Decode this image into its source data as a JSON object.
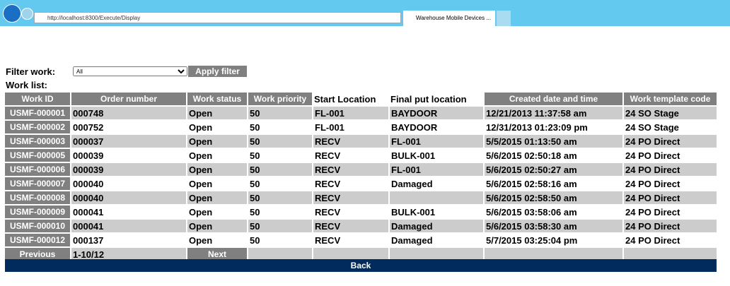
{
  "browser": {
    "url": "http://localhost:8300/Execute/Display",
    "tab_title": "Warehouse Mobile Devices ..."
  },
  "filter": {
    "label": "Filter work:",
    "selected": "All",
    "button": "Apply filter"
  },
  "work_list_label": "Work list:",
  "table": {
    "headers": [
      "Work ID",
      "Order number",
      "Work status",
      "Work priority",
      "Start Location",
      "Final put location",
      "Created date and time",
      "Work template code"
    ],
    "rows": [
      [
        "USMF-000001",
        "000748",
        "Open",
        "50",
        "FL-001",
        "BAYDOOR",
        "12/21/2013 11:37:58 am",
        "24 SO Stage"
      ],
      [
        "USMF-000002",
        "000752",
        "Open",
        "50",
        "FL-001",
        "BAYDOOR",
        "12/31/2013 01:23:09 pm",
        "24 SO Stage"
      ],
      [
        "USMF-000003",
        "000037",
        "Open",
        "50",
        "RECV",
        "FL-001",
        "5/5/2015 01:13:50 am",
        "24 PO Direct"
      ],
      [
        "USMF-000005",
        "000039",
        "Open",
        "50",
        "RECV",
        "BULK-001",
        "5/6/2015 02:50:18 am",
        "24 PO Direct"
      ],
      [
        "USMF-000006",
        "000039",
        "Open",
        "50",
        "RECV",
        "FL-001",
        "5/6/2015 02:50:27 am",
        "24 PO Direct"
      ],
      [
        "USMF-000007",
        "000040",
        "Open",
        "50",
        "RECV",
        "Damaged",
        "5/6/2015 02:58:16 am",
        "24 PO Direct"
      ],
      [
        "USMF-000008",
        "000040",
        "Open",
        "50",
        "RECV",
        null,
        "5/6/2015 02:58:50 am",
        "24 PO Direct"
      ],
      [
        "USMF-000009",
        "000041",
        "Open",
        "50",
        "RECV",
        "BULK-001",
        "5/6/2015 03:58:06 am",
        "24 PO Direct"
      ],
      [
        "USMF-000010",
        "000041",
        "Open",
        "50",
        "RECV",
        "Damaged",
        "5/6/2015 03:58:30 am",
        "24 PO Direct"
      ],
      [
        "USMF-000012",
        "000137",
        "Open",
        "50",
        "RECV",
        "Damaged",
        "5/7/2015 03:25:04 pm",
        "24 PO Direct"
      ]
    ]
  },
  "pagination": {
    "previous": "Previous",
    "range": "1-10/12",
    "next": "Next"
  },
  "back": "Back"
}
